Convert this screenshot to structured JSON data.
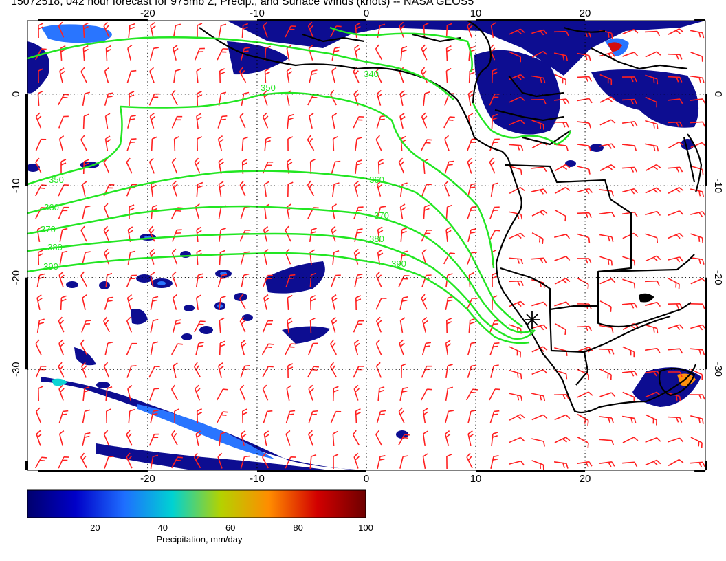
{
  "title": "15072518, 042 hour forecast for 975mb Z, Precip., and Surface Winds (knots) -- NASA GEOS5",
  "map": {
    "lon_range": [
      -31,
      31
    ],
    "lat_range": [
      -41,
      8
    ],
    "lon_ticks": [
      "-20",
      "-10",
      "0",
      "10",
      "20"
    ],
    "lon_tick_values": [
      -20,
      -10,
      0,
      10,
      20
    ],
    "lat_ticks": [
      "0",
      "-10",
      "-20",
      "-30"
    ],
    "lat_tick_values": [
      0,
      -10,
      -20,
      -30
    ],
    "grid": "dotted, every 10 degrees",
    "colors": {
      "contour": "#22e622",
      "wind_barbs": "#ff2020",
      "coastline": "#000000",
      "precip_low": "#00008c",
      "precip_high": "#6e0000"
    },
    "height_contours": [
      {
        "label": "340",
        "value": 340
      },
      {
        "label": "350",
        "value": 350
      },
      {
        "label": "360",
        "value": 360
      },
      {
        "label": "370",
        "value": 370
      },
      {
        "label": "380",
        "value": 380
      },
      {
        "label": "390",
        "value": 390
      }
    ],
    "marker": {
      "symbol": "asterisk",
      "lon": 14.9,
      "lat": -23.6
    }
  },
  "colorbar": {
    "range": [
      0,
      100
    ],
    "ticks": [
      "20",
      "40",
      "60",
      "80",
      "100"
    ],
    "tick_values": [
      20,
      40,
      60,
      80,
      100
    ],
    "label": "Precipitation, mm/day",
    "stops": [
      "#00006e",
      "#0000c8",
      "#1e6eff",
      "#00d2d2",
      "#b4d200",
      "#ff8c00",
      "#d20000",
      "#6e0000"
    ]
  }
}
